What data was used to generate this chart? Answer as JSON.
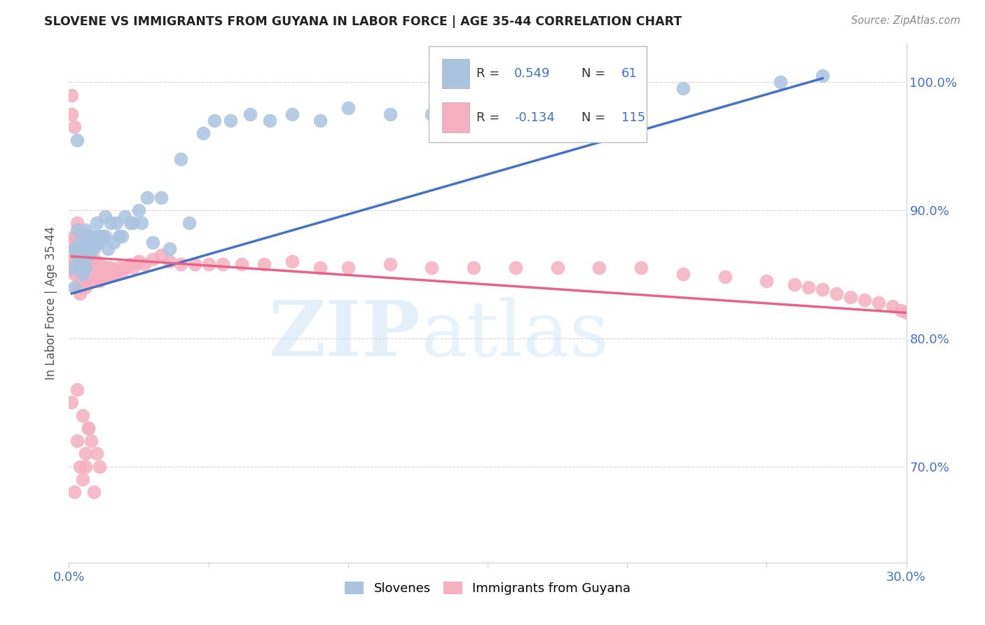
{
  "title": "SLOVENE VS IMMIGRANTS FROM GUYANA IN LABOR FORCE | AGE 35-44 CORRELATION CHART",
  "source": "Source: ZipAtlas.com",
  "ylabel": "In Labor Force | Age 35-44",
  "xlim": [
    0.0,
    0.3
  ],
  "ylim": [
    0.625,
    1.03
  ],
  "ytick_positions": [
    0.7,
    0.8,
    0.9,
    1.0
  ],
  "ytick_labels": [
    "70.0%",
    "80.0%",
    "90.0%",
    "100.0%"
  ],
  "xtick_positions": [
    0.0,
    0.3
  ],
  "xtick_labels": [
    "0.0%",
    "30.0%"
  ],
  "blue_color": "#aac4e0",
  "pink_color": "#f5afc0",
  "blue_line_color": "#4472c4",
  "pink_line_color": "#e8638a",
  "axis_color": "#4472c4",
  "grid_color": "#cccccc",
  "blue_scatter_x": [
    0.001,
    0.002,
    0.002,
    0.003,
    0.003,
    0.003,
    0.004,
    0.004,
    0.004,
    0.005,
    0.005,
    0.005,
    0.006,
    0.006,
    0.006,
    0.007,
    0.007,
    0.007,
    0.008,
    0.008,
    0.009,
    0.009,
    0.01,
    0.01,
    0.011,
    0.011,
    0.012,
    0.013,
    0.013,
    0.014,
    0.015,
    0.016,
    0.017,
    0.018,
    0.019,
    0.02,
    0.022,
    0.023,
    0.025,
    0.026,
    0.028,
    0.03,
    0.033,
    0.036,
    0.04,
    0.043,
    0.048,
    0.052,
    0.058,
    0.065,
    0.072,
    0.08,
    0.09,
    0.1,
    0.115,
    0.13,
    0.155,
    0.18,
    0.22,
    0.255,
    0.27
  ],
  "blue_scatter_y": [
    0.855,
    0.87,
    0.84,
    0.955,
    0.865,
    0.885,
    0.87,
    0.855,
    0.875,
    0.87,
    0.85,
    0.86,
    0.855,
    0.87,
    0.885,
    0.865,
    0.88,
    0.87,
    0.87,
    0.875,
    0.87,
    0.88,
    0.875,
    0.89,
    0.875,
    0.88,
    0.88,
    0.88,
    0.895,
    0.87,
    0.89,
    0.875,
    0.89,
    0.88,
    0.88,
    0.895,
    0.89,
    0.89,
    0.9,
    0.89,
    0.91,
    0.875,
    0.91,
    0.87,
    0.94,
    0.89,
    0.96,
    0.97,
    0.97,
    0.975,
    0.97,
    0.975,
    0.97,
    0.98,
    0.975,
    0.975,
    0.985,
    0.99,
    0.995,
    1.0,
    1.005
  ],
  "pink_scatter_x": [
    0.001,
    0.001,
    0.001,
    0.001,
    0.002,
    0.002,
    0.002,
    0.002,
    0.002,
    0.002,
    0.003,
    0.003,
    0.003,
    0.003,
    0.003,
    0.003,
    0.003,
    0.004,
    0.004,
    0.004,
    0.004,
    0.004,
    0.005,
    0.005,
    0.005,
    0.005,
    0.005,
    0.005,
    0.006,
    0.006,
    0.006,
    0.006,
    0.006,
    0.007,
    0.007,
    0.007,
    0.007,
    0.007,
    0.008,
    0.008,
    0.008,
    0.008,
    0.009,
    0.009,
    0.009,
    0.01,
    0.01,
    0.01,
    0.011,
    0.011,
    0.011,
    0.012,
    0.012,
    0.013,
    0.013,
    0.014,
    0.014,
    0.015,
    0.015,
    0.016,
    0.017,
    0.018,
    0.019,
    0.02,
    0.022,
    0.023,
    0.025,
    0.027,
    0.03,
    0.033,
    0.036,
    0.04,
    0.045,
    0.05,
    0.055,
    0.062,
    0.07,
    0.08,
    0.09,
    0.1,
    0.115,
    0.13,
    0.145,
    0.16,
    0.175,
    0.19,
    0.205,
    0.22,
    0.235,
    0.25,
    0.26,
    0.265,
    0.27,
    0.275,
    0.28,
    0.285,
    0.29,
    0.295,
    0.298,
    0.3,
    0.001,
    0.002,
    0.003,
    0.003,
    0.004,
    0.005,
    0.005,
    0.006,
    0.006,
    0.007,
    0.007,
    0.008,
    0.009,
    0.01,
    0.011
  ],
  "pink_scatter_y": [
    0.865,
    0.875,
    0.975,
    0.99,
    0.85,
    0.86,
    0.87,
    0.88,
    0.965,
    0.855,
    0.84,
    0.85,
    0.86,
    0.87,
    0.875,
    0.88,
    0.89,
    0.835,
    0.845,
    0.855,
    0.865,
    0.875,
    0.84,
    0.85,
    0.858,
    0.865,
    0.873,
    0.882,
    0.84,
    0.848,
    0.855,
    0.863,
    0.87,
    0.845,
    0.852,
    0.858,
    0.865,
    0.87,
    0.848,
    0.853,
    0.858,
    0.863,
    0.845,
    0.852,
    0.858,
    0.848,
    0.855,
    0.86,
    0.845,
    0.852,
    0.858,
    0.848,
    0.855,
    0.848,
    0.855,
    0.848,
    0.855,
    0.85,
    0.855,
    0.85,
    0.852,
    0.855,
    0.852,
    0.855,
    0.858,
    0.855,
    0.86,
    0.858,
    0.862,
    0.865,
    0.86,
    0.858,
    0.858,
    0.858,
    0.858,
    0.858,
    0.858,
    0.86,
    0.855,
    0.855,
    0.858,
    0.855,
    0.855,
    0.855,
    0.855,
    0.855,
    0.855,
    0.85,
    0.848,
    0.845,
    0.842,
    0.84,
    0.838,
    0.835,
    0.832,
    0.83,
    0.828,
    0.825,
    0.822,
    0.82,
    0.75,
    0.68,
    0.76,
    0.72,
    0.7,
    0.74,
    0.69,
    0.7,
    0.71,
    0.73,
    0.73,
    0.72,
    0.68,
    0.71,
    0.7
  ]
}
